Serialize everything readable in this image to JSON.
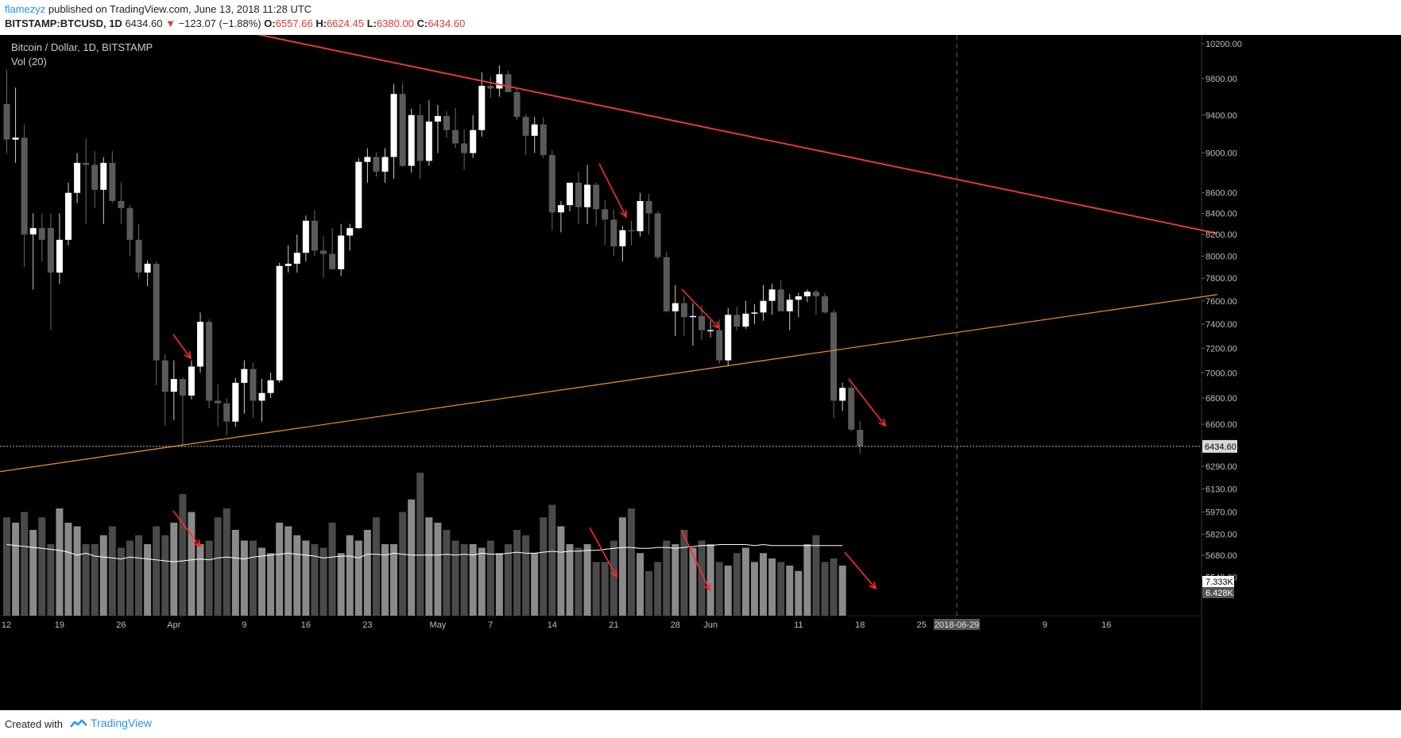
{
  "header": {
    "author": "flamezyz",
    "published": "published on TradingView.com, June 13, 2018 11:28 UTC",
    "symbol": "BITSTAMP:BTCUSD, 1D",
    "last": "6434.60",
    "change_arrow": "▼",
    "change": "−123.07 (−1.88%)",
    "o_label": "O:",
    "o": "6557.66",
    "h_label": "H:",
    "h": "6624.45",
    "l_label": "L:",
    "l": "6380.00",
    "c_label": "C:",
    "c": "6434.60"
  },
  "legend": {
    "title": "Bitcoin / Dollar, 1D, BITSTAMP",
    "volume": "Vol (20)"
  },
  "footer": {
    "made_with": "Created with",
    "brand": "TradingView",
    "brand_icon": "tradingview-logo-icon"
  },
  "colors": {
    "background": "#000000",
    "bull": "#ffffff",
    "bear": "#555555",
    "trend_resistance": "#e53935",
    "trend_support": "#e08a1e",
    "arrows": "#ff2a2a",
    "vol_ma": "#ffffff"
  },
  "chart_data": {
    "type": "candlestick",
    "title": "Bitcoin / Dollar, 1D, BITSTAMP",
    "y_scale": "log",
    "y_ticks": [
      10200,
      9800,
      9400,
      9000,
      8600,
      8400,
      8200,
      8000,
      7800,
      7600,
      7400,
      7200,
      7000,
      6800,
      6600,
      6290,
      6130,
      5970,
      5820,
      5680,
      5540
    ],
    "y_tick_labels": [
      "10200.00",
      "9800.00",
      "9400.00",
      "9000.00",
      "8600.00",
      "8400.00",
      "8200.00",
      "8000.00",
      "7800.00",
      "7600.00",
      "7400.00",
      "7200.00",
      "7000.00",
      "6800.00",
      "6600.00",
      "6290.00",
      "6130.00",
      "5970.00",
      "5820.00",
      "5680.00",
      "5540.00"
    ],
    "last_price_label": "6434.60",
    "vol_labels": [
      "7.333K",
      "6.428K"
    ],
    "x_ticks": [
      {
        "label": "12",
        "i": -1
      },
      {
        "label": "19",
        "i": 6
      },
      {
        "label": "26",
        "i": 13
      },
      {
        "label": "Apr",
        "i": 19
      },
      {
        "label": "9",
        "i": 27
      },
      {
        "label": "16",
        "i": 34
      },
      {
        "label": "23",
        "i": 41
      },
      {
        "label": "May",
        "i": 49
      },
      {
        "label": "7",
        "i": 55
      },
      {
        "label": "14",
        "i": 62
      },
      {
        "label": "21",
        "i": 69
      },
      {
        "label": "28",
        "i": 76
      },
      {
        "label": "Jun",
        "i": 80
      },
      {
        "label": "11",
        "i": 90
      },
      {
        "label": "18",
        "i": 97
      },
      {
        "label": "25",
        "i": 104
      },
      {
        "label": "2018-06-29",
        "i": 108
      },
      {
        "label": "9",
        "i": 118
      },
      {
        "label": "16",
        "i": 125
      }
    ],
    "highlighted_date": "2018-06-29",
    "start_date": "2018-03-12",
    "candles": [
      {
        "o": 9520,
        "h": 9900,
        "l": 9000,
        "c": 9140
      },
      {
        "o": 9140,
        "h": 9700,
        "l": 8900,
        "c": 9160
      },
      {
        "o": 9160,
        "h": 9300,
        "l": 7900,
        "c": 8200
      },
      {
        "o": 8200,
        "h": 8400,
        "l": 7700,
        "c": 8260
      },
      {
        "o": 8260,
        "h": 8400,
        "l": 7950,
        "c": 8150
      },
      {
        "o": 8260,
        "h": 8400,
        "l": 7350,
        "c": 7850
      },
      {
        "o": 7850,
        "h": 8400,
        "l": 7750,
        "c": 8150
      },
      {
        "o": 8150,
        "h": 8700,
        "l": 8100,
        "c": 8600
      },
      {
        "o": 8600,
        "h": 9000,
        "l": 8500,
        "c": 8900
      },
      {
        "o": 8900,
        "h": 9150,
        "l": 8300,
        "c": 8880
      },
      {
        "o": 8880,
        "h": 9020,
        "l": 8450,
        "c": 8630
      },
      {
        "o": 8630,
        "h": 8960,
        "l": 8300,
        "c": 8900
      },
      {
        "o": 8900,
        "h": 9020,
        "l": 8500,
        "c": 8520
      },
      {
        "o": 8520,
        "h": 8700,
        "l": 8300,
        "c": 8450
      },
      {
        "o": 8450,
        "h": 8480,
        "l": 8000,
        "c": 8150
      },
      {
        "o": 8150,
        "h": 8300,
        "l": 7800,
        "c": 7850
      },
      {
        "o": 7850,
        "h": 7960,
        "l": 7730,
        "c": 7930
      },
      {
        "o": 7930,
        "h": 7950,
        "l": 6900,
        "c": 7100
      },
      {
        "o": 7100,
        "h": 7150,
        "l": 6590,
        "c": 6850
      },
      {
        "o": 6850,
        "h": 7100,
        "l": 6630,
        "c": 6950
      },
      {
        "o": 6950,
        "h": 6960,
        "l": 6430,
        "c": 6820
      },
      {
        "o": 6820,
        "h": 7100,
        "l": 6790,
        "c": 7050
      },
      {
        "o": 7050,
        "h": 7500,
        "l": 7000,
        "c": 7420
      },
      {
        "o": 7420,
        "h": 7440,
        "l": 6720,
        "c": 6780
      },
      {
        "o": 6780,
        "h": 6910,
        "l": 6580,
        "c": 6760
      },
      {
        "o": 6760,
        "h": 6800,
        "l": 6520,
        "c": 6620
      },
      {
        "o": 6620,
        "h": 6960,
        "l": 6580,
        "c": 6920
      },
      {
        "o": 6920,
        "h": 7100,
        "l": 6680,
        "c": 7030
      },
      {
        "o": 7030,
        "h": 7080,
        "l": 6650,
        "c": 6780
      },
      {
        "o": 6780,
        "h": 6950,
        "l": 6620,
        "c": 6840
      },
      {
        "o": 6840,
        "h": 7000,
        "l": 6800,
        "c": 6940
      },
      {
        "o": 6940,
        "h": 7940,
        "l": 6920,
        "c": 7910
      },
      {
        "o": 7910,
        "h": 8100,
        "l": 7850,
        "c": 7930
      },
      {
        "o": 7930,
        "h": 8200,
        "l": 7850,
        "c": 8030
      },
      {
        "o": 8030,
        "h": 8380,
        "l": 7950,
        "c": 8330
      },
      {
        "o": 8330,
        "h": 8430,
        "l": 8000,
        "c": 8050
      },
      {
        "o": 8050,
        "h": 8180,
        "l": 7800,
        "c": 8020
      },
      {
        "o": 8020,
        "h": 8260,
        "l": 7890,
        "c": 7880
      },
      {
        "o": 7880,
        "h": 8300,
        "l": 7820,
        "c": 8190
      },
      {
        "o": 8190,
        "h": 8300,
        "l": 8050,
        "c": 8260
      },
      {
        "o": 8260,
        "h": 8950,
        "l": 8250,
        "c": 8910
      },
      {
        "o": 8910,
        "h": 9050,
        "l": 8700,
        "c": 8960
      },
      {
        "o": 8960,
        "h": 9010,
        "l": 8760,
        "c": 8810
      },
      {
        "o": 8810,
        "h": 9050,
        "l": 8700,
        "c": 8960
      },
      {
        "o": 8960,
        "h": 9740,
        "l": 8740,
        "c": 9630
      },
      {
        "o": 9630,
        "h": 9750,
        "l": 8860,
        "c": 8870
      },
      {
        "o": 8870,
        "h": 9470,
        "l": 8800,
        "c": 9400
      },
      {
        "o": 9400,
        "h": 9520,
        "l": 8740,
        "c": 8920
      },
      {
        "o": 8920,
        "h": 9560,
        "l": 8870,
        "c": 9330
      },
      {
        "o": 9330,
        "h": 9510,
        "l": 9000,
        "c": 9390
      },
      {
        "o": 9390,
        "h": 9440,
        "l": 9160,
        "c": 9240
      },
      {
        "o": 9240,
        "h": 9480,
        "l": 9050,
        "c": 9100
      },
      {
        "o": 9100,
        "h": 9250,
        "l": 8830,
        "c": 9000
      },
      {
        "o": 9000,
        "h": 9400,
        "l": 8950,
        "c": 9240
      },
      {
        "o": 9240,
        "h": 9870,
        "l": 9170,
        "c": 9720
      },
      {
        "o": 9720,
        "h": 9820,
        "l": 9590,
        "c": 9690
      },
      {
        "o": 9690,
        "h": 9950,
        "l": 9600,
        "c": 9850
      },
      {
        "o": 9850,
        "h": 9890,
        "l": 9650,
        "c": 9650
      },
      {
        "o": 9650,
        "h": 9700,
        "l": 9350,
        "c": 9380
      },
      {
        "o": 9380,
        "h": 9410,
        "l": 8980,
        "c": 9180
      },
      {
        "o": 9180,
        "h": 9380,
        "l": 9000,
        "c": 9300
      },
      {
        "o": 9300,
        "h": 9380,
        "l": 8950,
        "c": 8980
      },
      {
        "o": 8980,
        "h": 9030,
        "l": 8240,
        "c": 8410
      },
      {
        "o": 8410,
        "h": 8520,
        "l": 8220,
        "c": 8480
      },
      {
        "o": 8480,
        "h": 8700,
        "l": 8420,
        "c": 8700
      },
      {
        "o": 8700,
        "h": 8810,
        "l": 8300,
        "c": 8460
      },
      {
        "o": 8460,
        "h": 8880,
        "l": 8300,
        "c": 8680
      },
      {
        "o": 8680,
        "h": 8700,
        "l": 8280,
        "c": 8440
      },
      {
        "o": 8440,
        "h": 8530,
        "l": 8100,
        "c": 8340
      },
      {
        "o": 8340,
        "h": 8440,
        "l": 8000,
        "c": 8090
      },
      {
        "o": 8090,
        "h": 8280,
        "l": 7950,
        "c": 8240
      },
      {
        "o": 8240,
        "h": 8330,
        "l": 8100,
        "c": 8230
      },
      {
        "o": 8230,
        "h": 8600,
        "l": 8180,
        "c": 8520
      },
      {
        "o": 8520,
        "h": 8590,
        "l": 8200,
        "c": 8400
      },
      {
        "o": 8400,
        "h": 8420,
        "l": 7970,
        "c": 7990
      },
      {
        "o": 7990,
        "h": 8040,
        "l": 7500,
        "c": 7510
      },
      {
        "o": 7510,
        "h": 7740,
        "l": 7300,
        "c": 7580
      },
      {
        "o": 7580,
        "h": 7640,
        "l": 7300,
        "c": 7460
      },
      {
        "o": 7460,
        "h": 7580,
        "l": 7220,
        "c": 7470
      },
      {
        "o": 7470,
        "h": 7560,
        "l": 7270,
        "c": 7350
      },
      {
        "o": 7350,
        "h": 7430,
        "l": 7290,
        "c": 7350
      },
      {
        "o": 7350,
        "h": 7440,
        "l": 7070,
        "c": 7100
      },
      {
        "o": 7100,
        "h": 7540,
        "l": 7050,
        "c": 7480
      },
      {
        "o": 7480,
        "h": 7550,
        "l": 7350,
        "c": 7380
      },
      {
        "o": 7380,
        "h": 7600,
        "l": 7360,
        "c": 7490
      },
      {
        "o": 7490,
        "h": 7570,
        "l": 7400,
        "c": 7500
      },
      {
        "o": 7500,
        "h": 7740,
        "l": 7430,
        "c": 7600
      },
      {
        "o": 7600,
        "h": 7750,
        "l": 7480,
        "c": 7700
      },
      {
        "o": 7700,
        "h": 7780,
        "l": 7520,
        "c": 7510
      },
      {
        "o": 7510,
        "h": 7660,
        "l": 7350,
        "c": 7610
      },
      {
        "o": 7610,
        "h": 7670,
        "l": 7460,
        "c": 7640
      },
      {
        "o": 7640,
        "h": 7700,
        "l": 7590,
        "c": 7680
      },
      {
        "o": 7680,
        "h": 7700,
        "l": 7480,
        "c": 7640
      },
      {
        "o": 7640,
        "h": 7670,
        "l": 7490,
        "c": 7500
      },
      {
        "o": 7500,
        "h": 7520,
        "l": 6650,
        "c": 6780
      },
      {
        "o": 6780,
        "h": 6920,
        "l": 6700,
        "c": 6880
      },
      {
        "o": 6880,
        "h": 6900,
        "l": 6550,
        "c": 6560
      },
      {
        "o": 6557.66,
        "h": 6624.45,
        "l": 6380,
        "c": 6434.6
      }
    ],
    "volume": [
      55,
      52,
      58,
      48,
      55,
      40,
      60,
      52,
      50,
      40,
      40,
      45,
      50,
      38,
      42,
      45,
      40,
      50,
      45,
      52,
      68,
      58,
      40,
      42,
      55,
      60,
      48,
      42,
      42,
      38,
      35,
      52,
      50,
      45,
      42,
      40,
      38,
      52,
      35,
      45,
      42,
      48,
      55,
      40,
      40,
      58,
      65,
      80,
      55,
      52,
      48,
      42,
      40,
      40,
      38,
      42,
      35,
      40,
      48,
      45,
      35,
      55,
      62,
      50,
      40,
      38,
      40,
      30,
      30,
      42,
      55,
      60,
      35,
      25,
      30,
      42,
      40,
      48,
      38,
      42,
      40,
      30,
      28,
      35,
      38,
      30,
      35,
      32,
      30,
      28,
      25,
      40,
      45,
      30,
      32,
      28
    ],
    "vol_ma_values": [
      7.4,
      7.3,
      7.2,
      7.1,
      7.0,
      6.9,
      6.8,
      6.6,
      6.3,
      6.5,
      6.2,
      6.1,
      6.0,
      5.9,
      6.1,
      6.0,
      5.9,
      5.8,
      5.7,
      5.6,
      5.7,
      5.8,
      5.9,
      5.8,
      6.0,
      6.1,
      6.0,
      5.9,
      6.1,
      6.2,
      6.3,
      6.4,
      6.5,
      6.4,
      6.3,
      6.2,
      6.0,
      6.1,
      6.2,
      6.2,
      6.0,
      6.4,
      6.4,
      6.3,
      6.5,
      6.4,
      6.3,
      6.3,
      6.3,
      6.3,
      6.4,
      6.3,
      6.4,
      6.3,
      6.5,
      6.4,
      6.4,
      6.5,
      6.6,
      6.5,
      6.5,
      6.6,
      6.7,
      6.6,
      6.7,
      6.7,
      6.8,
      6.8,
      6.9,
      7.0,
      7.1,
      7.1,
      7.0,
      7.0,
      7.1,
      7.1,
      7.0,
      7.1,
      7.2,
      7.3,
      7.3,
      7.4,
      7.4,
      7.4,
      7.4,
      7.3,
      7.4,
      7.3,
      7.3,
      7.3,
      7.3,
      7.3,
      7.3,
      7.3,
      7.3,
      7.3
    ],
    "trendlines": [
      {
        "name": "resistance",
        "color": "#e53935",
        "x1_i": 26.6,
        "y1": 10350,
        "x2_i": 137.6,
        "y2": 8210
      },
      {
        "name": "support",
        "color": "#e08a1e",
        "x1_i": -1.5,
        "y1": 6245,
        "x2_i": 137.6,
        "y2": 7655
      }
    ]
  }
}
